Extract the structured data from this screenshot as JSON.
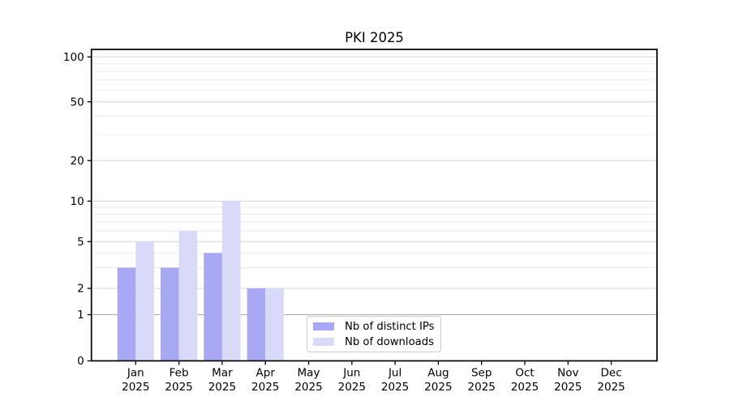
{
  "chart_data": {
    "type": "bar",
    "title": "PKI 2025",
    "categories": [
      "Jan",
      "Feb",
      "Mar",
      "Apr",
      "May",
      "Jun",
      "Jul",
      "Aug",
      "Sep",
      "Oct",
      "Nov",
      "Dec"
    ],
    "category_year": "2025",
    "series": [
      {
        "name": "Nb of distinct IPs",
        "color": "#a8a8f5",
        "values": [
          3,
          3,
          4,
          2,
          0,
          0,
          0,
          0,
          0,
          0,
          0,
          0
        ]
      },
      {
        "name": "Nb of downloads",
        "color": "#d9d9f8",
        "values": [
          5,
          6,
          10,
          2,
          0,
          0,
          0,
          0,
          0,
          0,
          0,
          0
        ]
      }
    ],
    "y_axis": {
      "scale": "symlog",
      "major_ticks": [
        0,
        1,
        2,
        5,
        10,
        20,
        50,
        100
      ],
      "minor_ticks": [
        3,
        4,
        6,
        7,
        8,
        9,
        30,
        40,
        60,
        70,
        80,
        90
      ],
      "range": [
        0,
        112
      ]
    },
    "legend": {
      "entries": [
        "Nb of distinct IPs",
        "Nb of downloads"
      ],
      "position": "lower-center-inside"
    },
    "grid": true,
    "styles": {
      "gridline_major": "#d8d8d8",
      "gridline_minor": "#ececec",
      "gridline_unit": "#a9a9a9",
      "spine": "#000000",
      "text": "#000000",
      "legend_border": "#cccccc",
      "background": "#ffffff"
    }
  }
}
